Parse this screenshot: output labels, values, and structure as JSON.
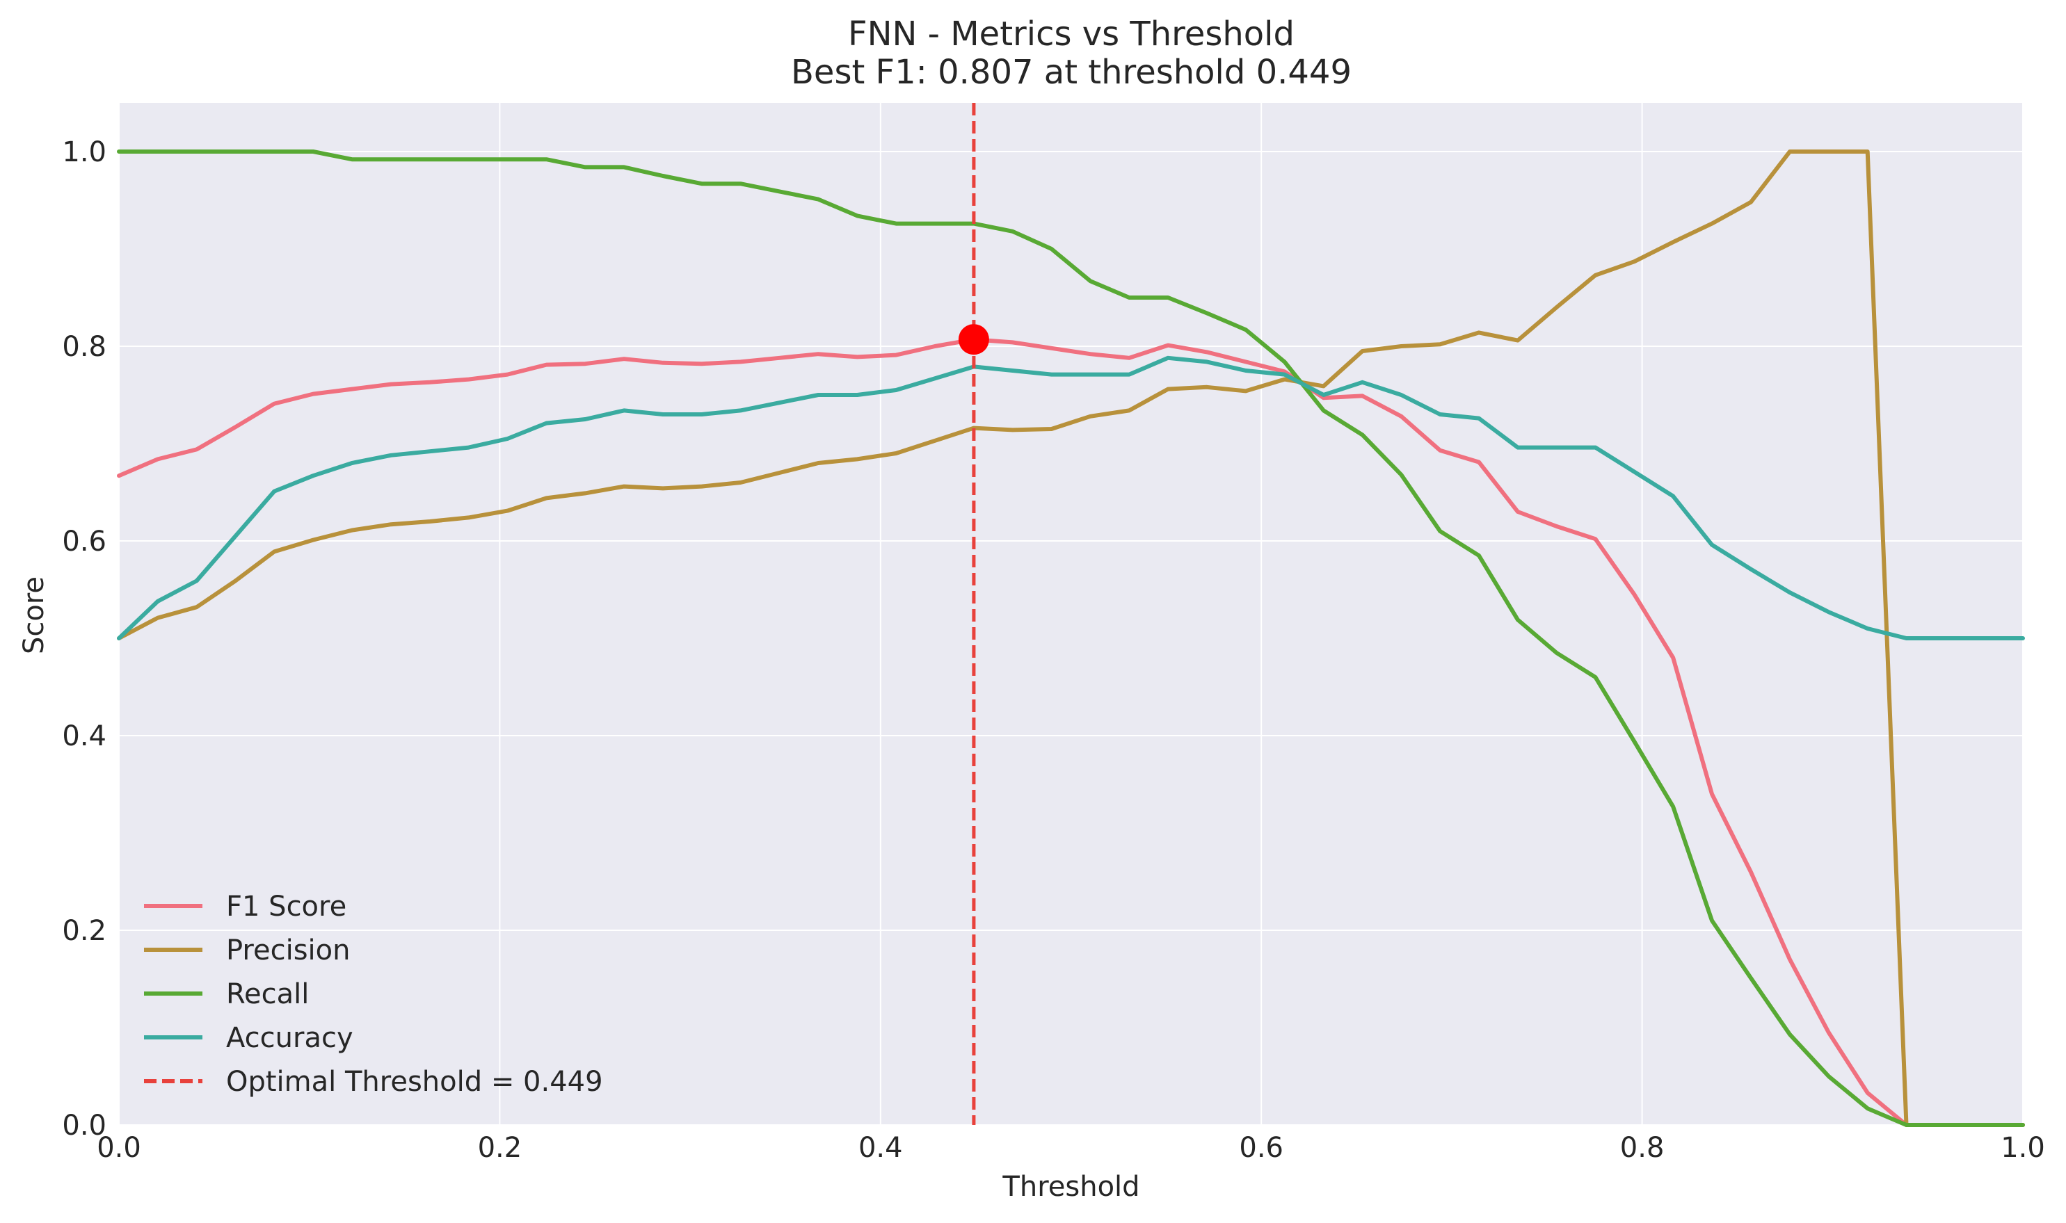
{
  "chart_data": {
    "type": "line",
    "title": "FNN - Metrics vs Threshold",
    "subtitle": "Best F1: 0.807 at threshold 0.449",
    "xlabel": "Threshold",
    "ylabel": "Score",
    "xlim": [
      0.0,
      1.0
    ],
    "ylim": [
      0.0,
      1.05
    ],
    "xticks": [
      "0.0",
      "0.2",
      "0.4",
      "0.6",
      "0.8",
      "1.0"
    ],
    "yticks": [
      "0.0",
      "0.2",
      "0.4",
      "0.6",
      "0.8",
      "1.0"
    ],
    "grid": true,
    "legend_position": "lower-left",
    "background_color": "#eaeaf2",
    "x": [
      0.0,
      0.0204,
      0.0408,
      0.0612,
      0.0816,
      0.102,
      0.1224,
      0.1429,
      0.1633,
      0.1837,
      0.2041,
      0.2245,
      0.2449,
      0.2653,
      0.2857,
      0.3061,
      0.3265,
      0.3469,
      0.3673,
      0.3878,
      0.4082,
      0.4286,
      0.449,
      0.4694,
      0.4898,
      0.5102,
      0.5306,
      0.551,
      0.5714,
      0.5918,
      0.6122,
      0.6327,
      0.6531,
      0.6735,
      0.6939,
      0.7143,
      0.7347,
      0.7551,
      0.7755,
      0.7959,
      0.8163,
      0.8367,
      0.8571,
      0.8776,
      0.898,
      0.9184,
      0.9388,
      0.9592,
      0.9796,
      1.0
    ],
    "series": [
      {
        "name": "F1 Score",
        "color": "#f0707f",
        "style": "solid",
        "values": [
          0.667,
          0.684,
          0.694,
          0.717,
          0.741,
          0.751,
          0.756,
          0.761,
          0.763,
          0.766,
          0.771,
          0.781,
          0.782,
          0.787,
          0.783,
          0.782,
          0.784,
          0.788,
          0.792,
          0.789,
          0.791,
          0.8,
          0.807,
          0.804,
          0.798,
          0.792,
          0.788,
          0.801,
          0.794,
          0.784,
          0.774,
          0.747,
          0.749,
          0.728,
          0.693,
          0.681,
          0.63,
          0.615,
          0.602,
          0.545,
          0.48,
          0.34,
          0.26,
          0.17,
          0.095,
          0.033,
          0.0,
          0.0,
          0.0,
          0.0
        ]
      },
      {
        "name": "Precision",
        "color": "#b8913b",
        "style": "solid",
        "values": [
          0.5,
          0.521,
          0.532,
          0.559,
          0.589,
          0.601,
          0.611,
          0.617,
          0.62,
          0.624,
          0.631,
          0.644,
          0.649,
          0.656,
          0.654,
          0.656,
          0.66,
          0.67,
          0.68,
          0.684,
          0.69,
          0.703,
          0.716,
          0.714,
          0.715,
          0.728,
          0.734,
          0.756,
          0.758,
          0.754,
          0.766,
          0.759,
          0.795,
          0.8,
          0.802,
          0.814,
          0.806,
          0.84,
          0.873,
          0.887,
          0.907,
          0.926,
          0.948,
          1.0,
          1.0,
          1.0,
          0.0,
          0.0,
          0.0,
          0.0
        ]
      },
      {
        "name": "Recall",
        "color": "#58a934",
        "style": "solid",
        "values": [
          1.0,
          1.0,
          1.0,
          1.0,
          1.0,
          1.0,
          0.992,
          0.992,
          0.992,
          0.992,
          0.992,
          0.992,
          0.984,
          0.984,
          0.975,
          0.967,
          0.967,
          0.959,
          0.951,
          0.934,
          0.926,
          0.926,
          0.926,
          0.918,
          0.9,
          0.867,
          0.85,
          0.85,
          0.834,
          0.817,
          0.784,
          0.734,
          0.709,
          0.668,
          0.61,
          0.585,
          0.519,
          0.485,
          0.46,
          0.394,
          0.327,
          0.21,
          0.151,
          0.093,
          0.05,
          0.017,
          0.0,
          0.0,
          0.0,
          0.0
        ]
      },
      {
        "name": "Accuracy",
        "color": "#3aaba0",
        "style": "solid",
        "values": [
          0.5,
          0.538,
          0.559,
          0.605,
          0.651,
          0.667,
          0.68,
          0.688,
          0.692,
          0.696,
          0.705,
          0.721,
          0.725,
          0.734,
          0.73,
          0.73,
          0.734,
          0.742,
          0.75,
          0.75,
          0.755,
          0.767,
          0.779,
          0.775,
          0.771,
          0.771,
          0.771,
          0.788,
          0.784,
          0.775,
          0.771,
          0.75,
          0.763,
          0.75,
          0.73,
          0.726,
          0.696,
          0.696,
          0.696,
          0.671,
          0.646,
          0.596,
          0.571,
          0.547,
          0.527,
          0.51,
          0.5,
          0.5,
          0.5,
          0.5
        ]
      }
    ],
    "vline": {
      "name": "Optimal Threshold = 0.449",
      "x": 0.449,
      "color": "#e8413c",
      "style": "dashed"
    },
    "best_point": {
      "x": 0.449,
      "y": 0.807,
      "color": "#ff0000"
    }
  }
}
